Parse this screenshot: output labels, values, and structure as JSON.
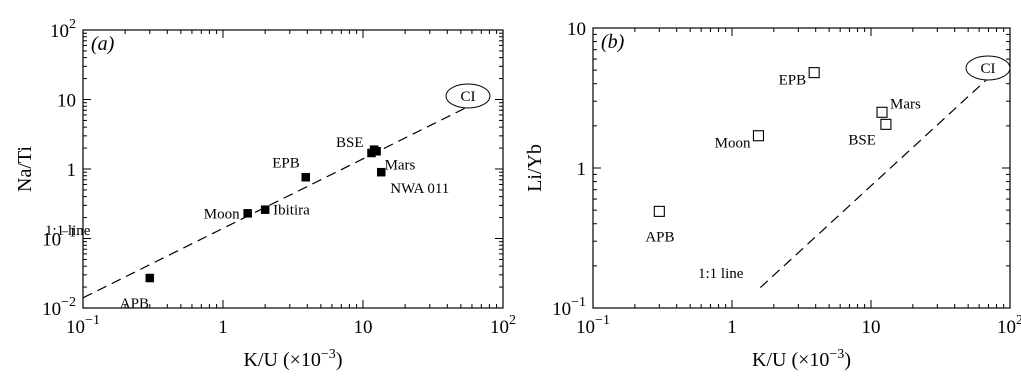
{
  "chart_data": [
    {
      "panel": "(a)",
      "type": "scatter",
      "xlabel": "K/U",
      "xlabel_unit": "(×10−3)",
      "ylabel": "Na/Ti",
      "xscale": "log",
      "yscale": "log",
      "xlim": [
        0.1,
        100
      ],
      "ylim": [
        0.01,
        100
      ],
      "xticks": [
        "10−1",
        "1",
        "10",
        "102"
      ],
      "yticks": [
        "10−2",
        "10−1",
        "1",
        "10",
        "102"
      ],
      "marker": "filled-square",
      "points": [
        {
          "label": "APB",
          "x": 0.3,
          "y": 0.027
        },
        {
          "label": "Moon",
          "x": 1.5,
          "y": 0.23
        },
        {
          "label": "Ibitira",
          "x": 2.0,
          "y": 0.26
        },
        {
          "label": "EPB",
          "x": 3.9,
          "y": 0.76
        },
        {
          "label": "BSE",
          "x": 11.5,
          "y": 1.7
        },
        {
          "label": "",
          "x": 12.0,
          "y": 1.9
        },
        {
          "label": "Mars",
          "x": 12.5,
          "y": 1.8
        },
        {
          "label": "NWA 011",
          "x": 13.5,
          "y": 0.9
        }
      ],
      "reference_line": {
        "label": "1:1 line",
        "from": [
          0.1,
          0.014
        ],
        "to": [
          70,
          9.8
        ]
      },
      "ci_label": "CI"
    },
    {
      "panel": "(b)",
      "type": "scatter",
      "xlabel": "K/U",
      "xlabel_unit": "(×10−3)",
      "ylabel": "Li/Yb",
      "xscale": "log",
      "yscale": "log",
      "xlim": [
        0.1,
        100
      ],
      "ylim": [
        0.1,
        10
      ],
      "xticks": [
        "10−1",
        "1",
        "10",
        "102"
      ],
      "yticks": [
        "10−1",
        "1",
        "10"
      ],
      "marker": "open-square",
      "points": [
        {
          "label": "APB",
          "x": 0.3,
          "y": 0.49
        },
        {
          "label": "Moon",
          "x": 1.55,
          "y": 1.7
        },
        {
          "label": "EPB",
          "x": 3.9,
          "y": 4.8
        },
        {
          "label": "Mars",
          "x": 12.0,
          "y": 2.5
        },
        {
          "label": "BSE",
          "x": 12.8,
          "y": 2.05
        }
      ],
      "reference_line": {
        "label": "1:1 line",
        "from": [
          1.6,
          0.14
        ],
        "to": [
          70,
          4.4
        ]
      },
      "ci_label": "CI"
    }
  ]
}
